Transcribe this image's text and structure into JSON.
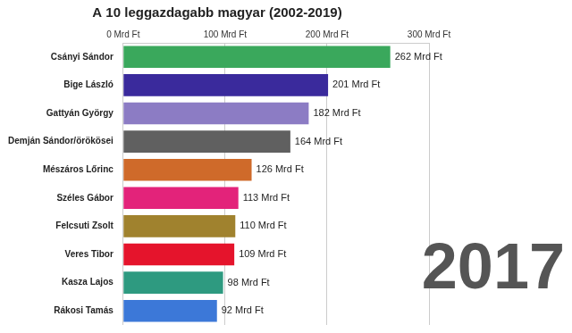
{
  "chart_data": {
    "type": "bar",
    "orientation": "horizontal",
    "title": "A 10 leggazdagabb magyar (2002-2019)",
    "annotation": "2017",
    "categories": [
      "Csányi Sándor",
      "Bige László",
      "Gattyán György",
      "Demján Sándor/örökösei",
      "Mészáros Lőrinc",
      "Széles Gábor",
      "Felcsuti Zsolt",
      "Veres Tibor",
      "Kasza Lajos",
      "Rákosi Tamás"
    ],
    "values": [
      262,
      201,
      182,
      164,
      126,
      113,
      110,
      109,
      98,
      92
    ],
    "value_labels": [
      "262 Mrd Ft",
      "201 Mrd Ft",
      "182 Mrd Ft",
      "164 Mrd Ft",
      "126 Mrd Ft",
      "113 Mrd Ft",
      "110 Mrd Ft",
      "109 Mrd Ft",
      "98 Mrd Ft",
      "92 Mrd Ft"
    ],
    "colors": [
      "#3aa85c",
      "#3a2a9c",
      "#8c7cc4",
      "#606060",
      "#cf6a2a",
      "#e3237a",
      "#a0822e",
      "#e5142c",
      "#2e9a80",
      "#3c78d8"
    ],
    "xlim": [
      0,
      300
    ],
    "xticks": [
      {
        "value": 0,
        "label": "0 Mrd Ft"
      },
      {
        "value": 100,
        "label": "100 Mrd Ft"
      },
      {
        "value": 200,
        "label": "200 Mrd Ft"
      },
      {
        "value": 300,
        "label": "300 Mrd Ft"
      }
    ],
    "grid": true,
    "data_labels": true
  }
}
